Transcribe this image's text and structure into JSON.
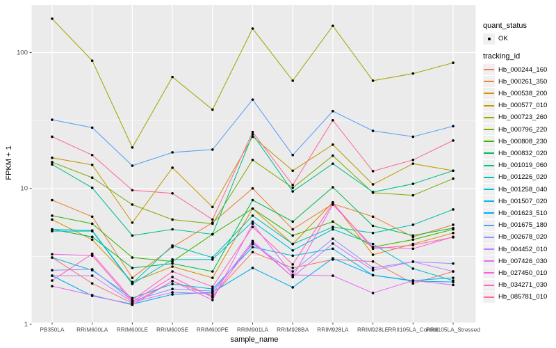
{
  "figure": {
    "x_axis_title": "sample_name",
    "y_axis_title": "FPKM + 1",
    "panel_bg": "#EBEBEB",
    "grid_color": "#FFFFFF",
    "tick_label_color": "#4D4D4D",
    "point_color": "#000000"
  },
  "legend": {
    "quant_status": {
      "title": "quant_status",
      "items": [
        {
          "label": "OK",
          "shape": "point"
        }
      ]
    },
    "tracking_id": {
      "title": "tracking_id"
    }
  },
  "chart_data": {
    "type": "line",
    "title": "",
    "xlabel": "sample_name",
    "ylabel": "FPKM + 1",
    "y_scale": "log10",
    "y_ticks": [
      1,
      10,
      100
    ],
    "y_minor_ticks": [
      3.162,
      31.623
    ],
    "ylim": [
      1.0,
      224
    ],
    "grid": true,
    "legend_position": "right",
    "point_shape": "black dot (quant_status OK)",
    "categories": [
      "PB350LA",
      "RRIM600LA",
      "RRIM600LE",
      "RRIM600SE",
      "RRIM600PE",
      "RRIM901LA",
      "RRIM928BA",
      "RRIM928LA",
      "RRIM928LE",
      "RRII105LA_Control",
      "RRII105LA_Stressed"
    ],
    "series": [
      {
        "name": "Hb_000244_160",
        "color": "#F8766D",
        "values": [
          3.1,
          2.0,
          1.43,
          2.08,
          1.62,
          3.4,
          2.6,
          3.0,
          2.9,
          2.0,
          2.45
        ]
      },
      {
        "name": "Hb_000261_350",
        "color": "#EA8331",
        "values": [
          8.2,
          6.2,
          2.2,
          3.7,
          5.6,
          10.0,
          5.0,
          7.7,
          6.2,
          4.4,
          5.4
        ]
      },
      {
        "name": "Hb_000538_200",
        "color": "#D89000",
        "values": [
          5.9,
          4.2,
          2.05,
          2.66,
          2.2,
          7.1,
          3.9,
          7.9,
          3.25,
          3.9,
          4.7
        ]
      },
      {
        "name": "Hb_000577_010",
        "color": "#C09B00",
        "values": [
          16.8,
          14.9,
          5.6,
          14.2,
          7.3,
          24.0,
          13.5,
          21.0,
          10.7,
          15.2,
          13.5
        ]
      },
      {
        "name": "Hb_000723_260",
        "color": "#A3A500",
        "values": [
          177,
          87,
          20,
          66,
          38,
          150,
          62,
          157,
          62,
          70,
          84
        ]
      },
      {
        "name": "Hb_000796_220",
        "color": "#7CAE00",
        "values": [
          15.6,
          12.0,
          7.6,
          5.9,
          5.5,
          16.2,
          10.1,
          17.4,
          9.3,
          8.9,
          11.8
        ]
      },
      {
        "name": "Hb_000808_230",
        "color": "#39B600",
        "values": [
          6.3,
          5.5,
          3.1,
          2.9,
          4.6,
          7.1,
          4.5,
          5.7,
          3.7,
          4.2,
          5.0
        ]
      },
      {
        "name": "Hb_000832_020",
        "color": "#00BB4E",
        "values": [
          5.0,
          4.4,
          2.6,
          2.8,
          2.45,
          8.2,
          5.7,
          10.2,
          5.3,
          4.5,
          5.1
        ]
      },
      {
        "name": "Hb_001019_060",
        "color": "#00C087",
        "values": [
          15.0,
          10.1,
          4.5,
          5.0,
          4.6,
          25.0,
          9.5,
          15.2,
          9.4,
          10.8,
          13.5
        ]
      },
      {
        "name": "Hb_001226_020",
        "color": "#00C0B2",
        "values": [
          5.0,
          4.9,
          2.0,
          3.8,
          3.1,
          6.3,
          3.9,
          5.2,
          4.7,
          5.4,
          7.0
        ]
      },
      {
        "name": "Hb_001258_040",
        "color": "#00BFD3",
        "values": [
          4.85,
          4.85,
          1.98,
          3.0,
          3.0,
          5.7,
          3.5,
          5.0,
          3.9,
          2.57,
          2.1
        ]
      },
      {
        "name": "Hb_001507_020",
        "color": "#00B8E7",
        "values": [
          3.1,
          2.5,
          1.56,
          1.98,
          1.82,
          3.7,
          3.2,
          3.6,
          2.3,
          2.1,
          2.2
        ]
      },
      {
        "name": "Hb_001623_510",
        "color": "#00ACF4",
        "values": [
          2.28,
          1.62,
          1.41,
          1.66,
          1.72,
          2.6,
          1.87,
          3.06,
          2.3,
          2.08,
          2.05
        ]
      },
      {
        "name": "Hb_001675_180",
        "color": "#529EFA",
        "values": [
          32,
          28,
          14.7,
          18.4,
          19.3,
          45,
          17.6,
          37,
          26.5,
          24,
          28.7
        ]
      },
      {
        "name": "Hb_002678_020",
        "color": "#9590FF",
        "values": [
          2.5,
          2.54,
          1.49,
          1.82,
          1.76,
          3.9,
          2.45,
          4.26,
          2.6,
          2.89,
          2.8
        ]
      },
      {
        "name": "Hb_004452_010",
        "color": "#C77CFF",
        "values": [
          2.28,
          2.28,
          1.46,
          1.72,
          1.68,
          4.1,
          2.23,
          3.93,
          2.5,
          2.89,
          2.45
        ]
      },
      {
        "name": "Hb_007426_030",
        "color": "#E76BF3",
        "values": [
          1.91,
          1.64,
          1.39,
          2.08,
          1.51,
          5.5,
          2.31,
          2.28,
          1.7,
          2.1,
          1.95
        ]
      },
      {
        "name": "Hb_027450_010",
        "color": "#FA62DB",
        "values": [
          3.28,
          3.2,
          1.47,
          2.23,
          1.58,
          4.0,
          2.23,
          7.6,
          3.7,
          3.6,
          4.4
        ]
      },
      {
        "name": "Hb_034271_030",
        "color": "#FF62BC",
        "values": [
          2.1,
          3.3,
          1.51,
          2.45,
          1.89,
          5.2,
          2.76,
          7.8,
          3.6,
          3.83,
          4.37
        ]
      },
      {
        "name": "Hb_085781_010",
        "color": "#FF6A98",
        "values": [
          24,
          17.6,
          9.7,
          9.2,
          5.9,
          26,
          10.6,
          31.7,
          13.4,
          16.2,
          22.5
        ]
      }
    ]
  }
}
